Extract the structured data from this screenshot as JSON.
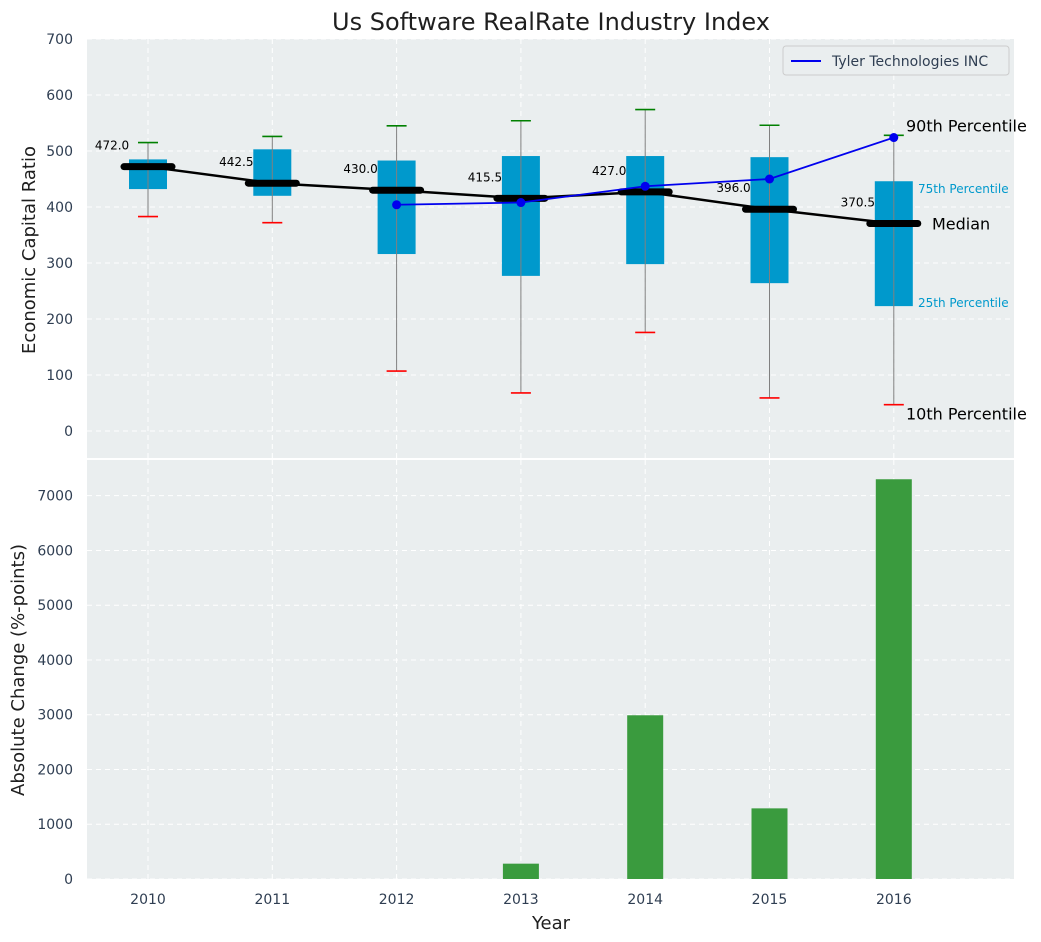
{
  "chart_data": [
    {
      "type": "box",
      "title": "Us Software RealRate Industry Index",
      "ylabel": "Economic Capital Ratio",
      "ylim": [
        -50,
        700
      ],
      "yticks": [
        0,
        100,
        200,
        300,
        400,
        500,
        600,
        700
      ],
      "categories": [
        "2010",
        "2011",
        "2012",
        "2013",
        "2014",
        "2015",
        "2016"
      ],
      "percentiles": {
        "p10": [
          383,
          372,
          107,
          68,
          176,
          59,
          47
        ],
        "p25": [
          432,
          420,
          316,
          277,
          298,
          264,
          223
        ],
        "median": [
          472.0,
          442.5,
          430.0,
          415.5,
          427.0,
          396.0,
          370.5
        ],
        "p75": [
          485,
          503,
          483,
          491,
          491,
          489,
          446
        ],
        "p90": [
          515,
          526,
          545,
          554,
          574,
          546,
          528
        ]
      },
      "median_labels": [
        "472.0",
        "442.5",
        "430.0",
        "415.5",
        "427.0",
        "396.0",
        "370.5"
      ],
      "series": [
        {
          "name": "Tyler Technologies INC",
          "x": [
            "2012",
            "2013",
            "2014",
            "2015",
            "2016"
          ],
          "values": [
            404,
            408,
            437,
            450,
            524
          ]
        }
      ],
      "annotations": {
        "p90": "90th Percentile",
        "p75": "75th Percentile",
        "median": "Median",
        "p25": "25th Percentile",
        "p10": "10th Percentile"
      },
      "legend": "top-right",
      "grid": true,
      "colors": {
        "box": "#0099cc",
        "median": "#000000",
        "p90_cap": "#008000",
        "p10_cap": "#ff0000",
        "whisker": "#808080",
        "company_line": "#0000ee",
        "annot_small": "#0099cc",
        "background": "#eaeeef"
      }
    },
    {
      "type": "bar",
      "xlabel": "Year",
      "ylabel": "Absolute Change (%-points)",
      "categories": [
        "2010",
        "2011",
        "2012",
        "2013",
        "2014",
        "2015",
        "2016"
      ],
      "values": [
        0,
        0,
        0,
        280,
        2990,
        1290,
        7300
      ],
      "ylim": [
        0,
        7700
      ],
      "yticks": [
        0,
        1000,
        2000,
        3000,
        4000,
        5000,
        6000,
        7000
      ],
      "grid": true,
      "colors": {
        "bar": "#3a9b3e",
        "background": "#eaeeef"
      }
    }
  ]
}
